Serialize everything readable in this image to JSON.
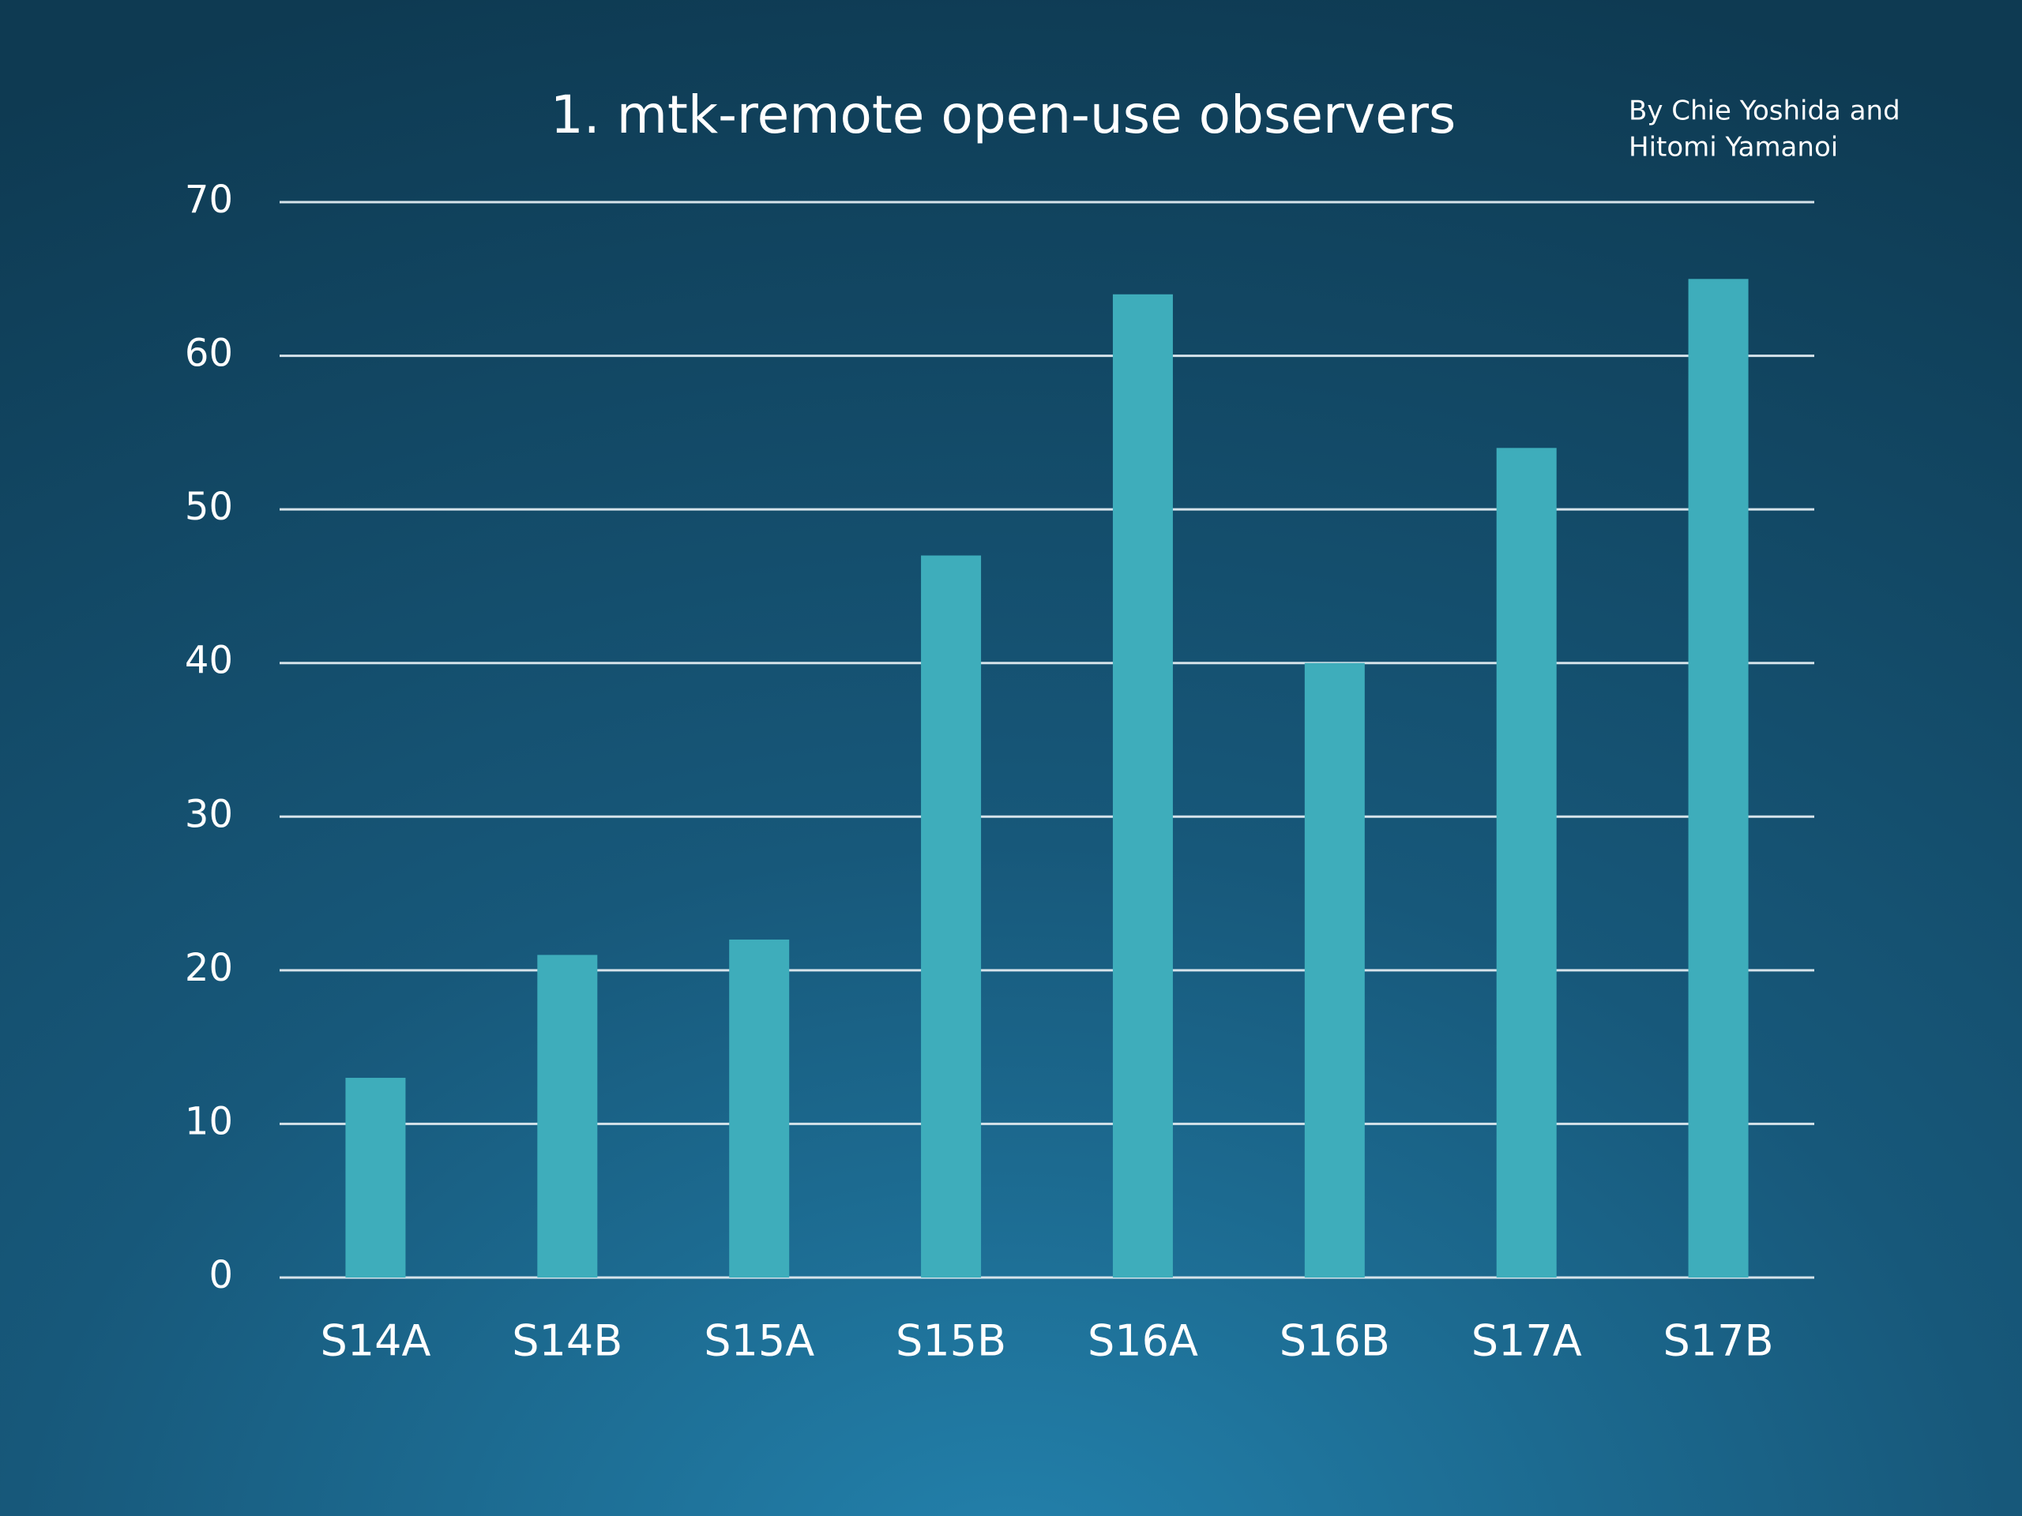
{
  "chart_data": {
    "type": "bar",
    "title": "1. mtk-remote open-use observers",
    "credit": [
      "By Chie Yoshida and",
      "Hitomi Yamanoi"
    ],
    "categories": [
      "S14A",
      "S14B",
      "S15A",
      "S15B",
      "S16A",
      "S16B",
      "S17A",
      "S17B"
    ],
    "values": [
      13,
      21,
      22,
      47,
      64,
      40,
      54,
      65
    ],
    "color": "#3eadbb",
    "ylim": [
      0,
      70
    ],
    "yticks": [
      0,
      10,
      20,
      30,
      40,
      50,
      60,
      70
    ],
    "grid": true
  }
}
